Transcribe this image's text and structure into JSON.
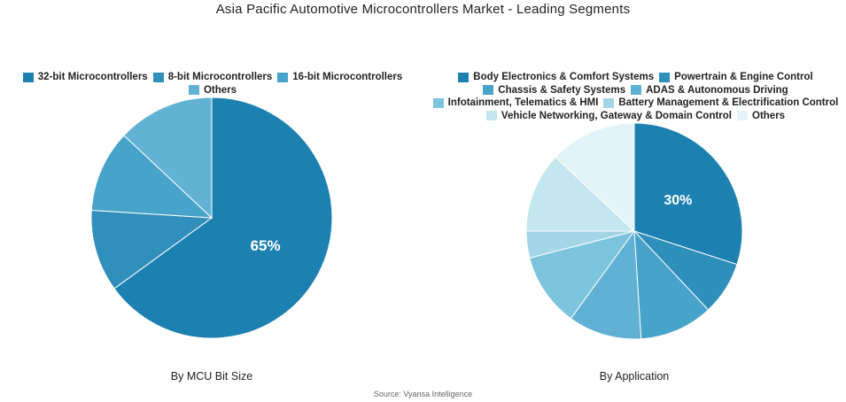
{
  "title": "Asia Pacific Automotive Microcontrollers Market - Leading Segments",
  "source": "Source: Vyansa Intelligence",
  "chart_data": [
    {
      "type": "pie",
      "caption": "By MCU Bit Size",
      "legend_position": "top",
      "labels": [
        "32-bit Microcontrollers",
        "8-bit Microcontrollers",
        "16-bit Microcontrollers",
        "Others"
      ],
      "values": [
        65,
        11,
        11,
        13
      ],
      "colors": [
        "#1c80b0",
        "#318fbb",
        "#47a3c9",
        "#61b2d3"
      ],
      "data_labels": [
        "65%",
        "",
        "",
        ""
      ]
    },
    {
      "type": "pie",
      "caption": "By Application",
      "legend_position": "top",
      "labels": [
        "Body Electronics & Comfort Systems",
        "Powertrain & Engine Control",
        "Chassis & Safety Systems",
        "ADAS & Autonomous Driving",
        "Infotainment, Telematics & HMI",
        "Battery Management & Electrification Control",
        "Vehicle Networking, Gateway & Domain Control",
        "Others"
      ],
      "values": [
        30,
        8,
        11,
        11,
        11,
        4,
        12,
        13
      ],
      "colors": [
        "#1c80b0",
        "#2f8fbb",
        "#47a3c9",
        "#60b1d3",
        "#7cc3dc",
        "#a3d5e6",
        "#c3e6ef",
        "#e3f4f9"
      ],
      "data_labels": [
        "30%",
        "",
        "",
        "",
        "",
        "",
        "",
        ""
      ]
    }
  ]
}
